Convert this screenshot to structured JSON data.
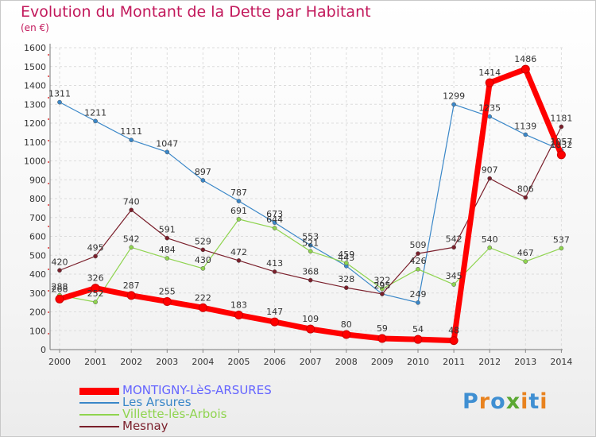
{
  "title": "Evolution du Montant de la Dette par Habitant",
  "unit": "(en €)",
  "logo": {
    "text": "Proxiti",
    "letters": [
      "P",
      "r",
      "o",
      "x",
      "i",
      "t",
      "i"
    ],
    "colors": [
      "#3f8fd2",
      "#e8821e",
      "#3f8fd2",
      "#5aa832",
      "#e8821e",
      "#3f8fd2",
      "#e8821e"
    ]
  },
  "chart_data": {
    "type": "line",
    "title": "Evolution du Montant de la Dette par Habitant",
    "ylabel": "(en €)",
    "xlabel": "",
    "ylim": [
      0,
      1600
    ],
    "yticks": [
      0,
      100,
      200,
      300,
      400,
      500,
      600,
      700,
      800,
      900,
      1000,
      1100,
      1200,
      1300,
      1400,
      1500,
      1600
    ],
    "grid": true,
    "legend_position": "bottom-left",
    "x": [
      "2000",
      "2001",
      "2002",
      "2003",
      "2004",
      "2005",
      "2006",
      "2007",
      "2008",
      "2009",
      "2010",
      "2011",
      "2012",
      "2013",
      "2014"
    ],
    "series": [
      {
        "name": "MONTIGNY-LèS-ARSURES",
        "color": "#ff0000",
        "labelColor": "#333333",
        "width": 7,
        "marker": 5,
        "values": [
          268,
          326,
          287,
          255,
          222,
          183,
          147,
          109,
          80,
          59,
          54,
          48,
          1414,
          1486,
          1032
        ]
      },
      {
        "name": "Les Arsures",
        "color": "#3a87c8",
        "labelColor": "#333333",
        "width": 1.2,
        "marker": 2.6,
        "values": [
          1311,
          1211,
          1111,
          1047,
          897,
          787,
          673,
          553,
          443,
          295,
          249,
          1299,
          1235,
          1139,
          1057
        ]
      },
      {
        "name": "Villette-lès-Arbois",
        "color": "#8fd44f",
        "labelColor": "#333333",
        "width": 1.2,
        "marker": 2.6,
        "values": [
          288,
          252,
          542,
          484,
          430,
          691,
          644,
          521,
          459,
          322,
          426,
          345,
          540,
          467,
          537
        ]
      },
      {
        "name": "Mesnay",
        "color": "#7a1f2b",
        "labelColor": "#333333",
        "width": 1.2,
        "marker": 2.6,
        "values": [
          420,
          495,
          740,
          591,
          529,
          472,
          413,
          368,
          328,
          295,
          509,
          542,
          907,
          806,
          1181
        ]
      }
    ]
  },
  "legend_colors": {
    "montigny": "#6464ff",
    "arsures": "#3a87c8",
    "villette": "#8fd44f",
    "mesnay": "#7a1f2b"
  }
}
